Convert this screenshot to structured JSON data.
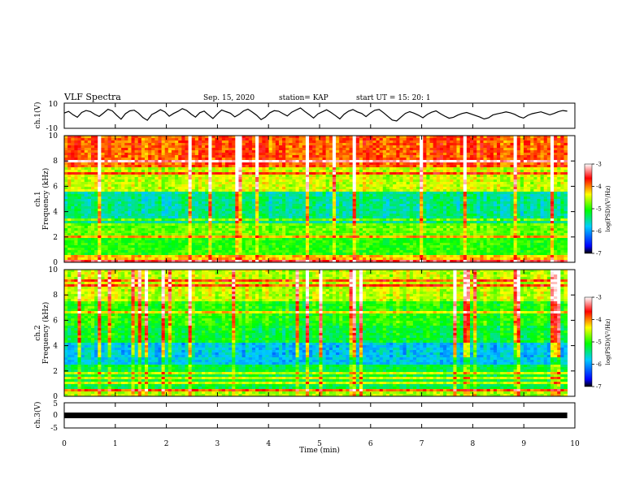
{
  "header": {
    "title": "VLF Spectra",
    "date": "Sep. 15, 2020",
    "station": "station= KAP",
    "start": "start  UT =   15: 20: 1"
  },
  "colors": {
    "trace": "#000000",
    "colormap": [
      "#000000",
      "#0000ff",
      "#00ccff",
      "#00ff00",
      "#ffff00",
      "#ff0000",
      "#ffffff"
    ]
  },
  "chart_data": [
    {
      "type": "line",
      "name": "ch1-waveform",
      "ylabel": "ch.1(V)",
      "ylim": [
        -10,
        10
      ],
      "yticks": [
        "10",
        "-10"
      ],
      "xlim": [
        0,
        10
      ],
      "x_max_data": 9.85,
      "values": [
        2.1,
        3.4,
        0.8,
        -1.2,
        2.6,
        4.1,
        3.3,
        1.0,
        -0.6,
        2.2,
        5.1,
        3.8,
        0.4,
        -2.8,
        1.6,
        3.9,
        4.4,
        2.0,
        -1.5,
        -3.6,
        0.9,
        2.7,
        4.8,
        3.1,
        -0.4,
        1.8,
        3.5,
        5.6,
        4.2,
        1.3,
        -1.1,
        2.4,
        3.7,
        0.6,
        -2.2,
        1.4,
        4.6,
        3.2,
        2.0,
        -0.9,
        1.1,
        3.8,
        5.2,
        2.9,
        0.3,
        -3.1,
        -1.0,
        2.3,
        4.0,
        3.6,
        1.7,
        -0.2,
        2.8,
        4.5,
        6.2,
        3.4,
        0.9,
        -1.8,
        1.5,
        3.1,
        4.7,
        2.6,
        0.1,
        -2.5,
        1.2,
        3.6,
        4.9,
        3.0,
        1.8,
        -0.7,
        2.1,
        4.3,
        5.0,
        2.4,
        -0.5,
        -3.4,
        -4.2,
        -1.1,
        1.9,
        3.2,
        2.0,
        0.4,
        -1.6,
        1.0,
        2.8,
        3.9,
        1.6,
        -0.3,
        -2.0,
        -1.2,
        0.5,
        1.8,
        2.6,
        1.4,
        0.2,
        -1.0,
        -2.6,
        -1.7,
        0.6,
        1.5,
        2.2,
        3.0,
        2.3,
        1.1,
        -0.8,
        -1.9,
        0.3,
        1.6,
        2.4,
        3.1,
        1.9,
        0.7,
        1.8,
        3.3,
        4.1,
        3.6
      ]
    },
    {
      "type": "heatmap",
      "name": "ch1-spectrogram",
      "ylabel": "Frequency (kHz)",
      "channel_label": "ch.1",
      "ylim": [
        0,
        10
      ],
      "yticks": [
        "0",
        "2",
        "4",
        "6",
        "8",
        "10"
      ],
      "xlim": [
        0,
        10
      ],
      "x_max_data": 9.85,
      "description_bands_kHz": {
        "high_power_above": 7.5,
        "low_power_between": [
          3.0,
          5.5
        ],
        "low_band_power_below": 2.0
      },
      "colorbar": {
        "label": "log(PSD)(V²/Hz)",
        "range": [
          -7,
          -3
        ],
        "ticks": [
          "-3",
          "-4",
          "-5",
          "-6",
          "-7"
        ]
      }
    },
    {
      "type": "heatmap",
      "name": "ch2-spectrogram",
      "ylabel": "Frequency (kHz)",
      "channel_label": "ch.2",
      "ylim": [
        0,
        10
      ],
      "yticks": [
        "0",
        "2",
        "4",
        "6",
        "8",
        "10"
      ],
      "xlim": [
        0,
        10
      ],
      "x_max_data": 9.85,
      "colorbar": {
        "label": "log(PSD)(V²/Hz)",
        "range": [
          -7,
          -3
        ],
        "ticks": [
          "-3",
          "-4",
          "-5",
          "-6",
          "-7"
        ]
      }
    },
    {
      "type": "line",
      "name": "ch3-waveform",
      "ylabel": "ch.3(V)",
      "ylim": [
        -5,
        5
      ],
      "yticks": [
        "5",
        "0",
        "-5"
      ],
      "xlim": [
        0,
        10
      ],
      "x_max_data": 9.85,
      "level_V": 0.0
    }
  ],
  "xaxis": {
    "label": "Time (min)",
    "ticks": [
      "0",
      "1",
      "2",
      "3",
      "4",
      "5",
      "6",
      "7",
      "8",
      "9",
      "10"
    ]
  }
}
